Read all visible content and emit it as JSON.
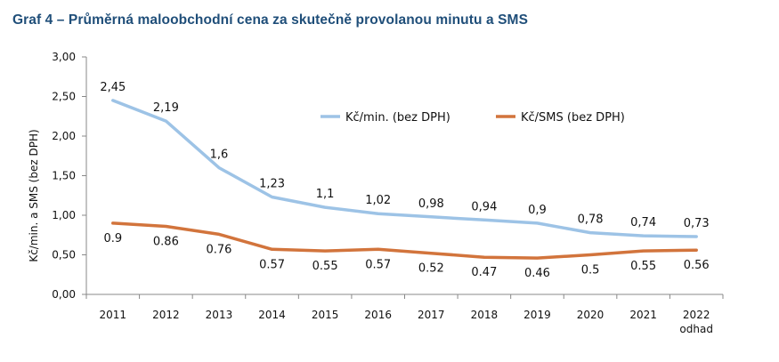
{
  "chart_data": {
    "type": "line",
    "title": "Graf 4 – Průměrná maloobchodní cena za skutečně provolanou minutu a SMS",
    "ylabel": "Kč/min. a SMS (bez DPH)",
    "xlabel": "",
    "ylim": [
      0,
      3
    ],
    "yticks": [
      "0,00",
      "0,50",
      "1,00",
      "1,50",
      "2,00",
      "2,50",
      "3,00"
    ],
    "categories": [
      "2011",
      "2012",
      "2013",
      "2014",
      "2015",
      "2016",
      "2017",
      "2018",
      "2019",
      "2020",
      "2021",
      "2022"
    ],
    "category_sublabels": [
      "",
      "",
      "",
      "",
      "",
      "",
      "",
      "",
      "",
      "",
      "",
      "odhad"
    ],
    "series": [
      {
        "name": "Kč/min. (bez DPH)",
        "color": "#9dc3e6",
        "values": [
          2.45,
          2.19,
          1.6,
          1.23,
          1.1,
          1.02,
          0.98,
          0.94,
          0.9,
          0.78,
          0.74,
          0.73
        ],
        "labels": [
          "2,45",
          "2,19",
          "1,6",
          "1,23",
          "1,1",
          "1,02",
          "0,98",
          "0,94",
          "0,9",
          "0,78",
          "0,74",
          "0,73"
        ],
        "label_position": "above"
      },
      {
        "name": "Kč/SMS (bez DPH)",
        "color": "#d2743c",
        "values": [
          0.9,
          0.86,
          0.76,
          0.57,
          0.55,
          0.57,
          0.52,
          0.47,
          0.46,
          0.5,
          0.55,
          0.56
        ],
        "labels": [
          "0.9",
          "0.86",
          "0.76",
          "0.57",
          "0.55",
          "0.57",
          "0.52",
          "0.47",
          "0.46",
          "0.5",
          "0.55",
          "0.56"
        ],
        "label_position": "below"
      }
    ],
    "grid": false,
    "legend_position": "top-right"
  }
}
